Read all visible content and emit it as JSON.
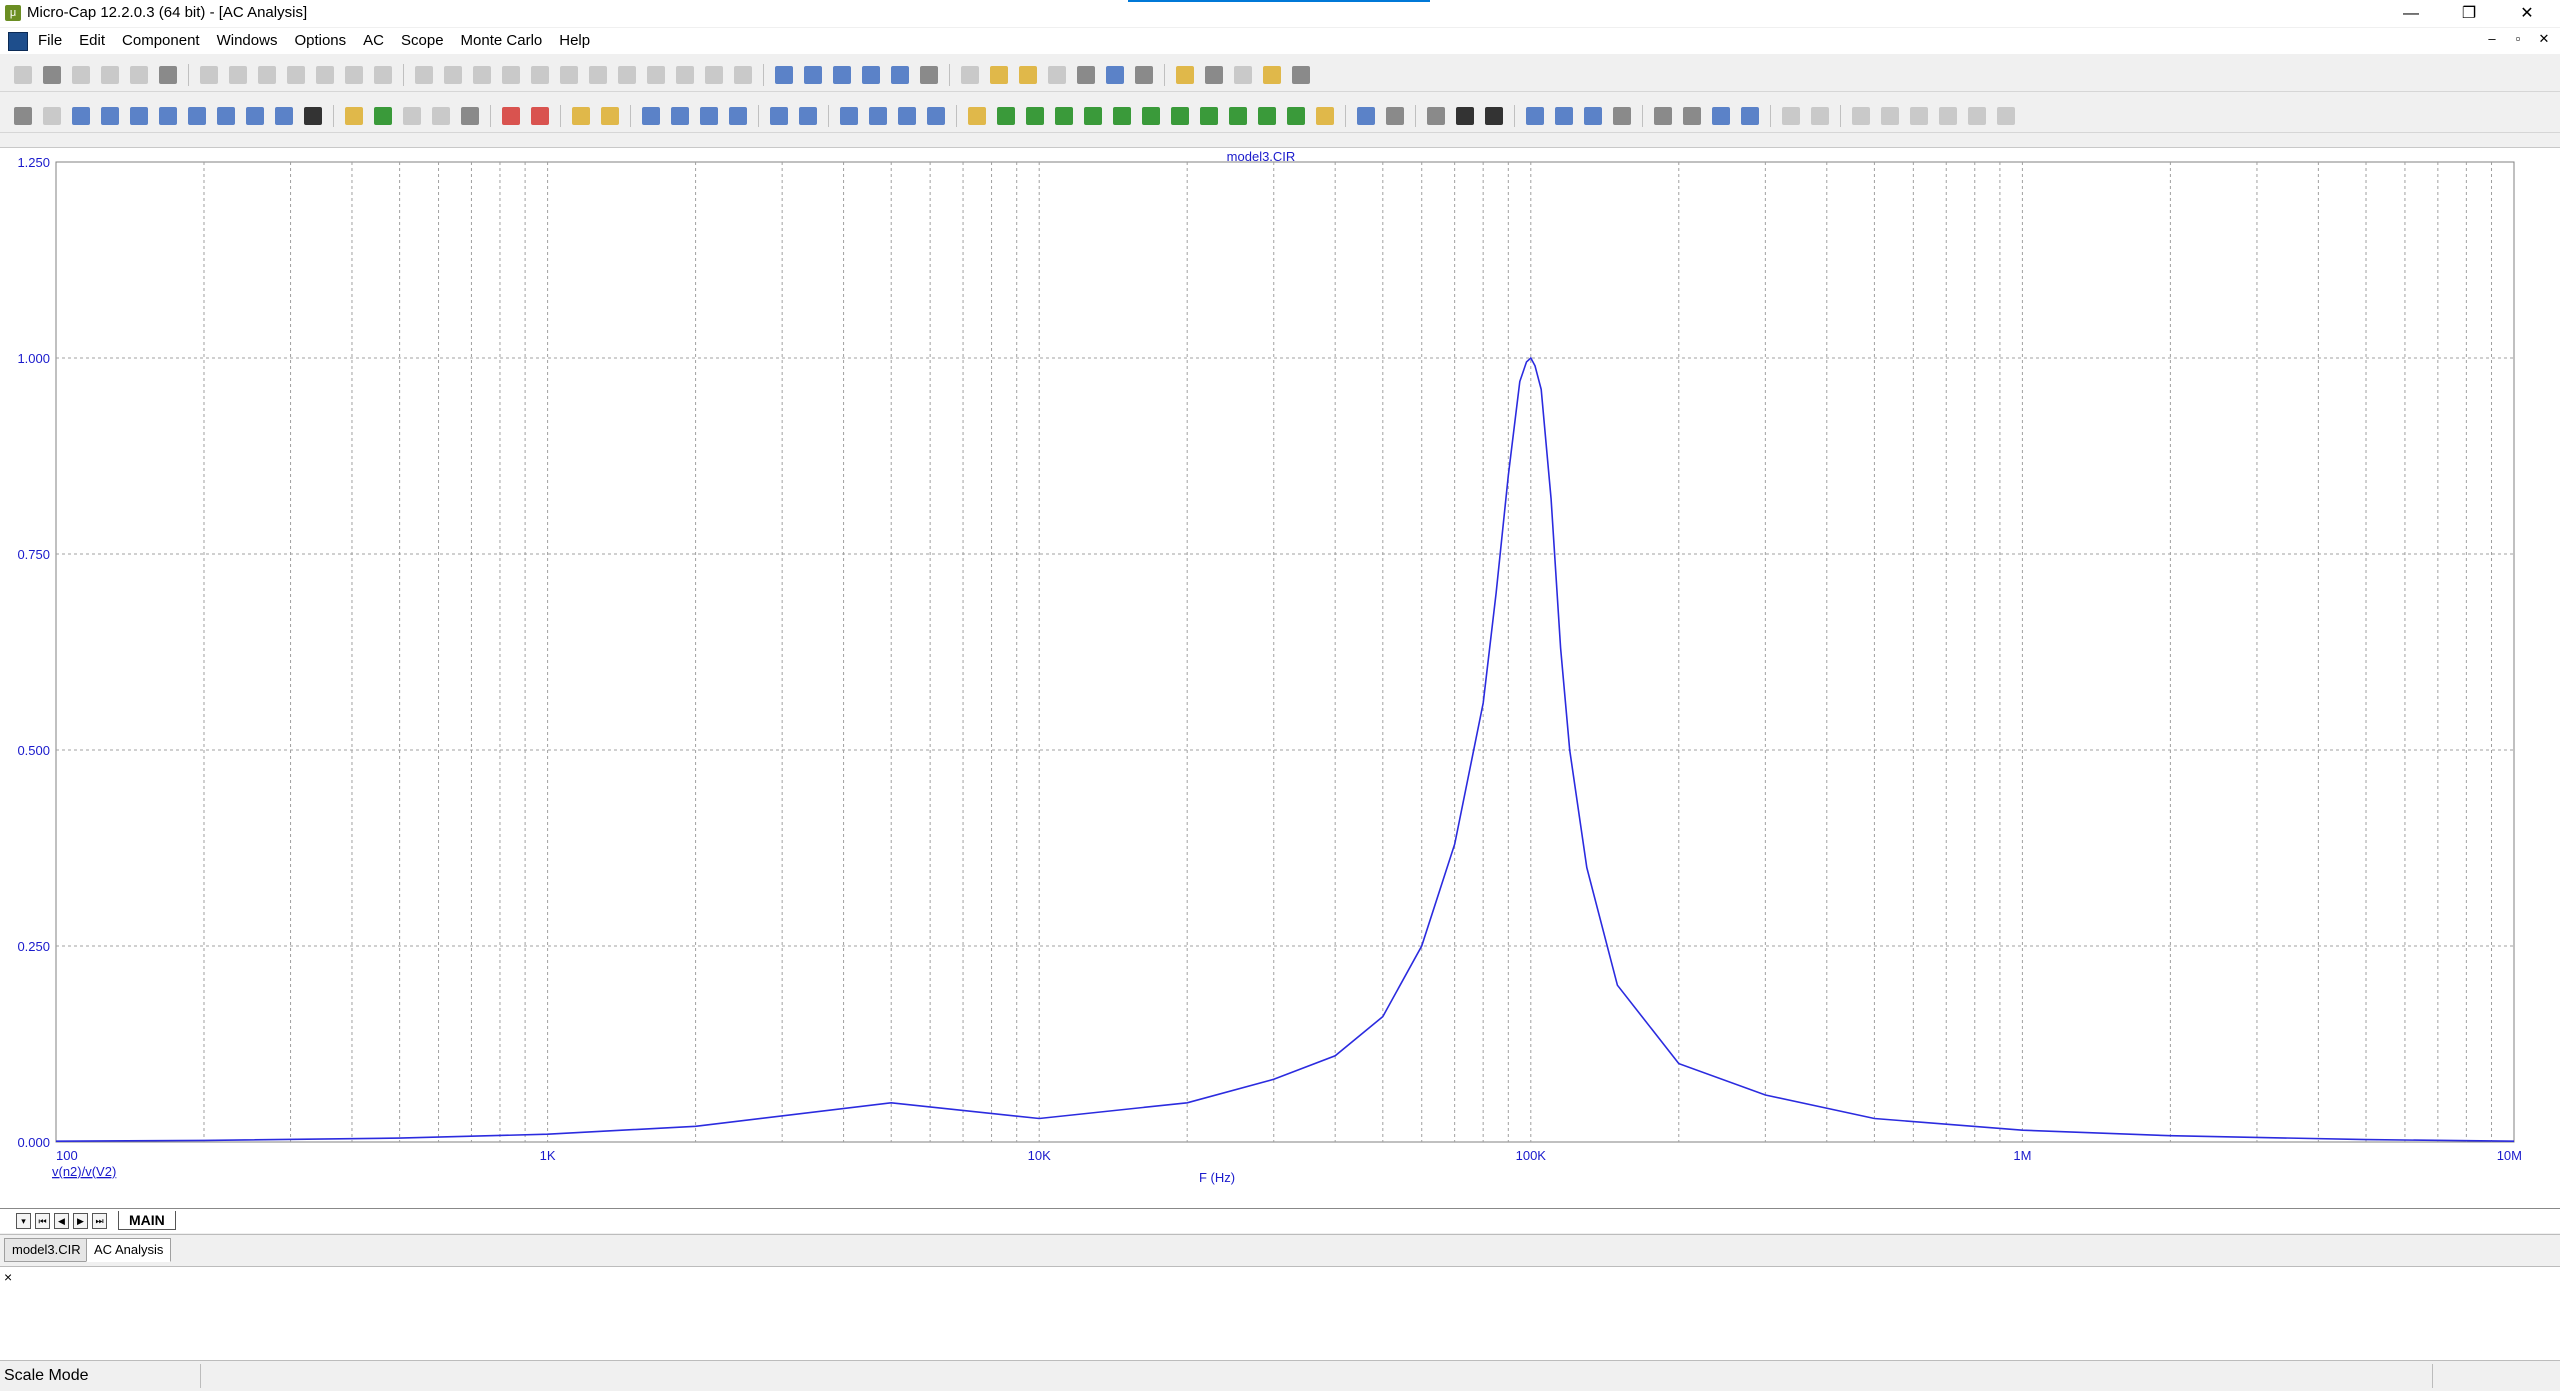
{
  "window": {
    "title": "Micro-Cap 12.2.0.3 (64 bit) - [AC Analysis]",
    "controls": {
      "minimize": "—",
      "restore": "❐",
      "close": "✕"
    }
  },
  "menu": {
    "items": [
      "File",
      "Edit",
      "Component",
      "Windows",
      "Options",
      "AC",
      "Scope",
      "Monte Carlo",
      "Help"
    ],
    "mdi_controls": [
      "–",
      "▫",
      "✕"
    ]
  },
  "colors": {
    "trace": "#2b2bdf",
    "axis_text": "#1a1acc",
    "grid": "#a0a0a0"
  },
  "chart_data": {
    "type": "line",
    "title": "model3.CIR",
    "xlabel": "F (Hz)",
    "ylabel": "",
    "x_scale": "log",
    "xlim": [
      100,
      10000000
    ],
    "ylim": [
      0,
      1.25
    ],
    "x_tick_labels": [
      "100",
      "1K",
      "10K",
      "100K",
      "1M",
      "10M"
    ],
    "y_tick_labels": [
      "0.000",
      "0.250",
      "0.500",
      "0.750",
      "1.000",
      "1.250"
    ],
    "grid": true,
    "series": [
      {
        "name": "v(n2)/v(V2)",
        "x": [
          100,
          200,
          500,
          1000,
          2000,
          5000,
          10000,
          20000,
          30000,
          40000,
          50000,
          60000,
          70000,
          80000,
          85000,
          90000,
          95000,
          98000,
          100000,
          102000,
          105000,
          110000,
          115000,
          120000,
          130000,
          150000,
          200000,
          300000,
          500000,
          1000000,
          2000000,
          5000000,
          10000000
        ],
        "y": [
          0.001,
          0.002,
          0.005,
          0.01,
          0.02,
          0.05,
          0.03,
          0.05,
          0.08,
          0.11,
          0.16,
          0.25,
          0.38,
          0.56,
          0.7,
          0.85,
          0.97,
          0.995,
          1.0,
          0.99,
          0.96,
          0.82,
          0.63,
          0.5,
          0.35,
          0.2,
          0.1,
          0.06,
          0.03,
          0.015,
          0.008,
          0.003,
          0.001
        ]
      }
    ]
  },
  "sheet_tabs": {
    "nav": [
      "▾",
      "⏮",
      "◀",
      "▶",
      "⏭"
    ],
    "active": "MAIN"
  },
  "doc_tabs": [
    "model3.CIR",
    "AC Analysis"
  ],
  "output": {
    "close": "×"
  },
  "status": {
    "mode": "Scale Mode"
  }
}
